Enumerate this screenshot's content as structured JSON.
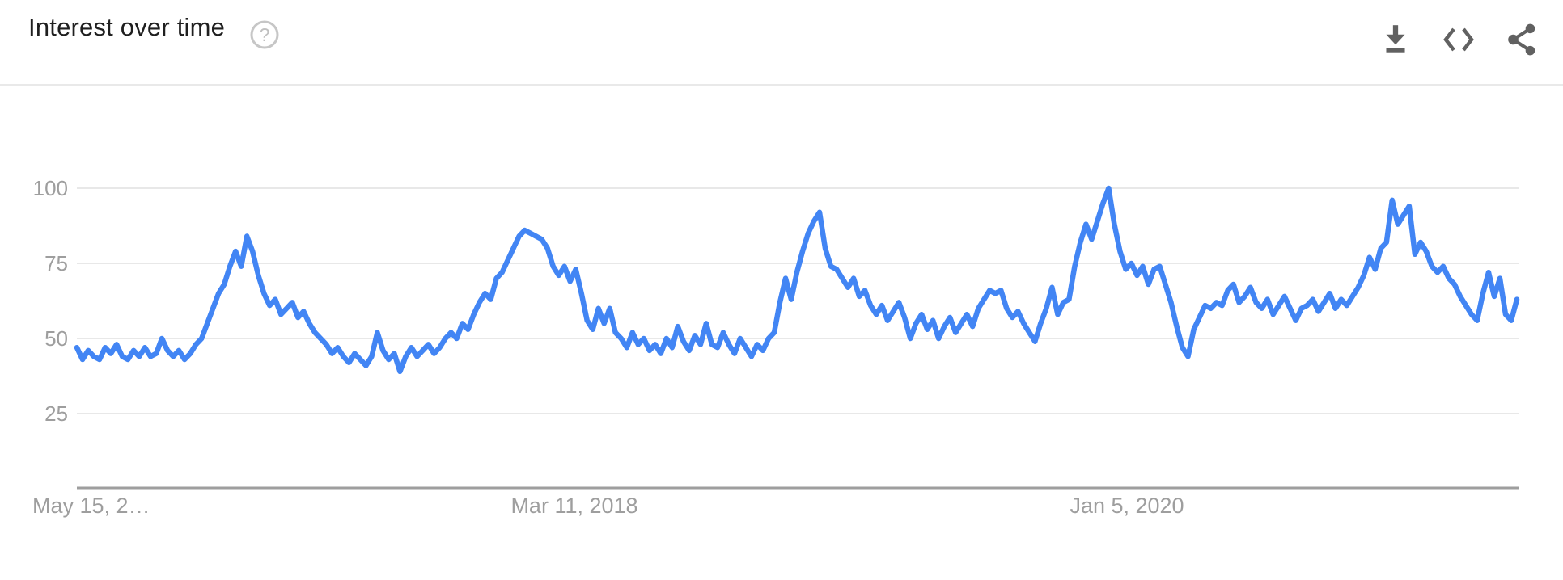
{
  "header": {
    "title": "Interest over time",
    "help_glyph": "?",
    "icons": [
      "download-icon",
      "embed-icon",
      "share-icon"
    ]
  },
  "chart_data": {
    "type": "line",
    "title": "Interest over time",
    "xlabel": "",
    "ylabel": "",
    "ylim": [
      0,
      100
    ],
    "grid": true,
    "legend_position": "none",
    "line_color": "#4285f4",
    "grid_color": "#e8e8e8",
    "axis_color": "#9e9e9e",
    "tick_label_color": "#9e9e9e",
    "y_ticks": [
      100,
      75,
      50,
      25
    ],
    "x_tick_labels": [
      "May 15, 2…",
      "Mar 11, 2018",
      "Jan 5, 2020"
    ],
    "x_unit": "weeks",
    "values": [
      47,
      43,
      46,
      44,
      43,
      47,
      45,
      48,
      44,
      43,
      46,
      44,
      47,
      44,
      45,
      50,
      46,
      44,
      46,
      43,
      45,
      48,
      50,
      55,
      60,
      65,
      68,
      74,
      79,
      74,
      84,
      79,
      71,
      65,
      61,
      63,
      58,
      60,
      62,
      57,
      59,
      55,
      52,
      50,
      48,
      45,
      47,
      44,
      42,
      45,
      43,
      41,
      44,
      52,
      46,
      43,
      45,
      39,
      44,
      47,
      44,
      46,
      48,
      45,
      47,
      50,
      52,
      50,
      55,
      53,
      58,
      62,
      65,
      63,
      70,
      72,
      76,
      80,
      84,
      86,
      85,
      84,
      83,
      80,
      74,
      71,
      74,
      69,
      73,
      65,
      56,
      53,
      60,
      55,
      60,
      52,
      50,
      47,
      52,
      48,
      50,
      46,
      48,
      45,
      50,
      47,
      54,
      49,
      46,
      51,
      48,
      55,
      48,
      47,
      52,
      48,
      45,
      50,
      47,
      44,
      48,
      46,
      50,
      52,
      62,
      70,
      63,
      72,
      79,
      85,
      89,
      92,
      80,
      74,
      73,
      70,
      67,
      70,
      64,
      66,
      61,
      58,
      61,
      56,
      59,
      62,
      57,
      50,
      55,
      58,
      53,
      56,
      50,
      54,
      57,
      52,
      55,
      58,
      54,
      60,
      63,
      66,
      65,
      66,
      60,
      57,
      59,
      55,
      52,
      49,
      55,
      60,
      67,
      58,
      62,
      63,
      74,
      82,
      88,
      83,
      89,
      95,
      100,
      88,
      79,
      73,
      75,
      71,
      74,
      68,
      73,
      74,
      68,
      62,
      54,
      47,
      44,
      53,
      57,
      61,
      60,
      62,
      61,
      66,
      68,
      62,
      64,
      67,
      62,
      60,
      63,
      58,
      61,
      64,
      60,
      56,
      60,
      61,
      63,
      59,
      62,
      65,
      60,
      63,
      61,
      64,
      67,
      71,
      77,
      73,
      80,
      82,
      96,
      88,
      91,
      94,
      78,
      82,
      79,
      74,
      72,
      74,
      70,
      68,
      64,
      61,
      58,
      56,
      65,
      72,
      64,
      70,
      58,
      56,
      63
    ]
  }
}
